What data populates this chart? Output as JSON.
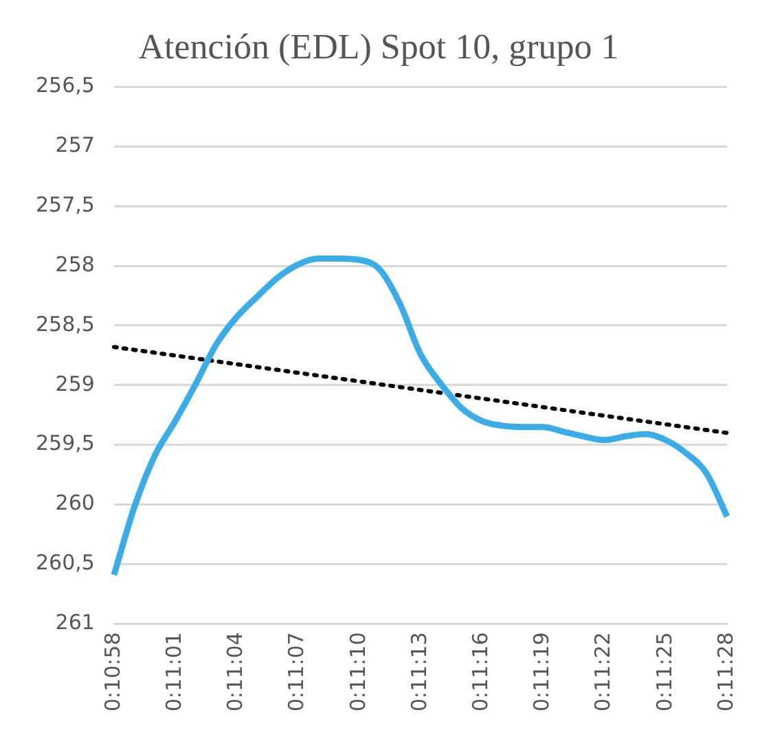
{
  "chart_data": {
    "type": "line",
    "title": "Atención (EDL) Spot 10, grupo 1",
    "categories": [
      "0:10:58",
      null,
      null,
      "0:11:01",
      null,
      null,
      "0:11:04",
      null,
      null,
      "0:11:07",
      null,
      null,
      "0:11:10",
      null,
      null,
      "0:11:13",
      null,
      null,
      "0:11:16",
      null,
      null,
      "0:11:19",
      null,
      null,
      "0:11:22",
      null,
      null,
      "0:11:25",
      null,
      null,
      "0:11:28"
    ],
    "series": [
      {
        "color": "#3aade8",
        "line_style": "solid",
        "values": [
          260.59,
          260.02,
          259.59,
          259.3,
          258.99,
          258.66,
          258.43,
          258.26,
          258.1,
          257.99,
          257.94,
          257.94,
          257.95,
          258.03,
          258.32,
          258.74,
          258.99,
          259.19,
          259.3,
          259.34,
          259.35,
          259.35,
          259.39,
          259.43,
          259.46,
          259.43,
          259.41,
          259.46,
          259.57,
          259.74,
          260.1
        ]
      },
      {
        "color": "#000000",
        "line_style": "dotted",
        "values": [
          258.68,
          null,
          null,
          null,
          null,
          null,
          null,
          null,
          null,
          null,
          null,
          null,
          null,
          null,
          null,
          null,
          null,
          null,
          null,
          null,
          null,
          null,
          null,
          null,
          null,
          null,
          null,
          null,
          null,
          null,
          259.4
        ]
      }
    ],
    "ylim": [
      261,
      256.5
    ],
    "yticks": [
      {
        "value": 256.5,
        "label": "256,5"
      },
      257,
      {
        "value": 257.5,
        "label": "257,5"
      },
      258,
      {
        "value": 258.5,
        "label": "258,5"
      },
      259,
      {
        "value": 259.5,
        "label": "259,5"
      },
      260,
      {
        "value": 260.5,
        "label": "260,5"
      },
      261
    ],
    "grid": "y",
    "legend": false,
    "marker": "none"
  }
}
